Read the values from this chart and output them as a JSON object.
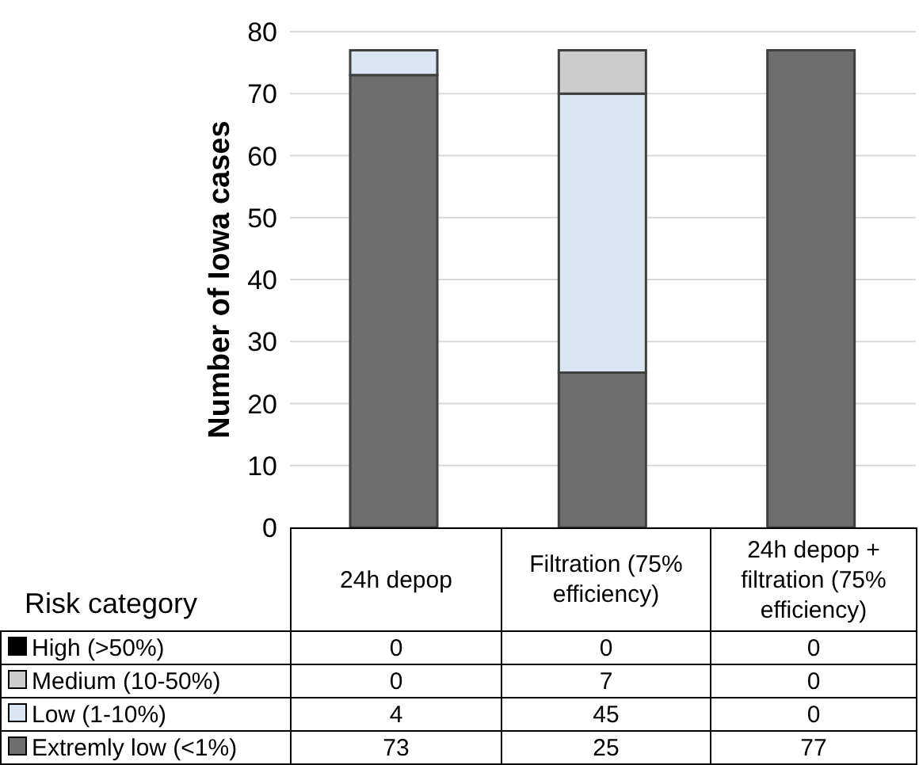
{
  "chart_data": {
    "type": "bar",
    "ylabel": "Number of Iowa cases",
    "legend_title": "Risk category",
    "categories": [
      "24h depop",
      "Filtration (75% efficiency)",
      "24h depop + filtration (75% efficiency)"
    ],
    "stacked": true,
    "ylim": [
      0,
      80
    ],
    "yticks": [
      0,
      10,
      20,
      30,
      40,
      50,
      60,
      70,
      80
    ],
    "grid": "y",
    "legend": "bottom",
    "tick_labels": "y",
    "data_labels": true,
    "series": [
      {
        "name": "Extremly low (<1%)",
        "color": "#6e6e6e",
        "values": [
          73,
          25,
          77
        ]
      },
      {
        "name": "Low (1-10%)",
        "color": "#dce6f2",
        "values": [
          4,
          45,
          0
        ]
      },
      {
        "name": "Medium (10-50%)",
        "color": "#cccccc",
        "values": [
          0,
          7,
          0
        ]
      },
      {
        "name": "High (>50%)",
        "color": "#000000",
        "values": [
          0,
          0,
          0
        ]
      }
    ]
  }
}
